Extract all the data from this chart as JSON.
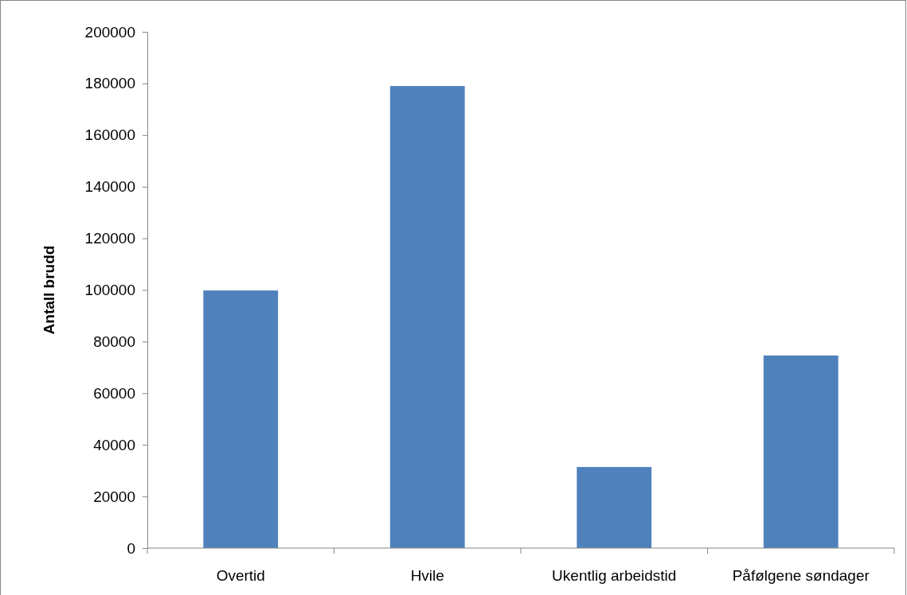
{
  "chart_data": {
    "type": "bar",
    "ylabel": "Antall brudd",
    "categories": [
      "Overtid",
      "Hvile",
      "Ukentlig arbeidstid",
      "Påfølgene søndager"
    ],
    "values": [
      99800,
      179000,
      31400,
      74600
    ],
    "color": "#4f81bd",
    "ylim": [
      0,
      200000
    ],
    "yticks": [
      0,
      20000,
      40000,
      60000,
      80000,
      100000,
      120000,
      140000,
      160000,
      180000,
      200000
    ],
    "grid": false
  }
}
